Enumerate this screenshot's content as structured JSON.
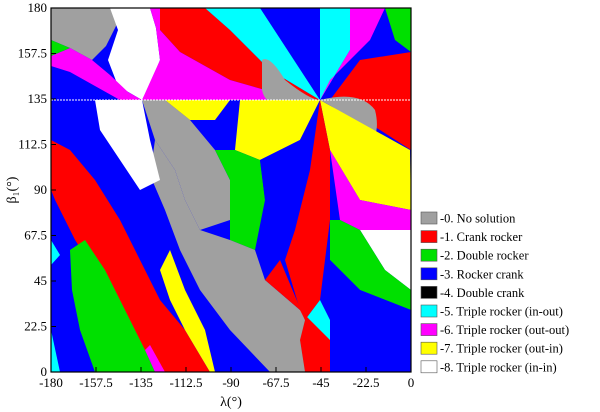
{
  "figure": {
    "x_axis": {
      "label": "λ(°)",
      "ticks": [
        "-180",
        "-157.5",
        "-135",
        "-112.5",
        "-90",
        "-67.5",
        "-45",
        "-22.5",
        "0"
      ]
    },
    "y_axis": {
      "label": "β₁(°)",
      "ticks": [
        "0",
        "22.5",
        "45",
        "67.5",
        "90",
        "112.5",
        "135",
        "157.5",
        "180"
      ]
    },
    "legend": [
      {
        "label": "-0. No solution",
        "color": "#a0a0a0"
      },
      {
        "label": "-1. Crank rocker",
        "color": "#ff0000"
      },
      {
        "label": "-2. Double rocker",
        "color": "#00e000"
      },
      {
        "label": "-3. Rocker crank",
        "color": "#0000ff"
      },
      {
        "label": "-4. Double crank",
        "color": "#000000"
      },
      {
        "label": "-5. Triple rocker (in-out)",
        "color": "#00ffff"
      },
      {
        "label": "-6. Triple rocker (out-out)",
        "color": "#ff00ff"
      },
      {
        "label": "-7. Triple rocker (out-in)",
        "color": "#ffff00"
      },
      {
        "label": "-8. Triple rocker (in-in)",
        "color": "#ffffff"
      }
    ]
  }
}
